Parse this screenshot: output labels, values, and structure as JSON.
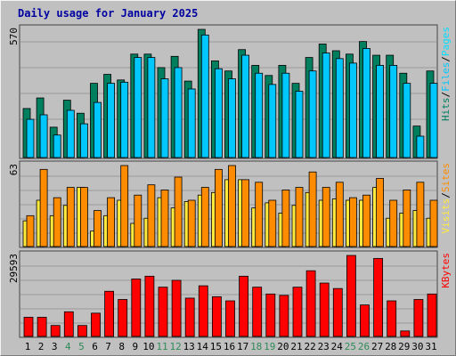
{
  "title": "Daily usage for January 2025",
  "colors": {
    "hits": "#007f5f",
    "files": "#00c8ff",
    "pages": "#00e0ff",
    "sites": "#ffea3d",
    "visits": "#ff8c00",
    "kbytes": "#ff0000",
    "title": "#0000a0",
    "weekend": "#2e8b57"
  },
  "chart_data": [
    {
      "type": "bar",
      "name": "hits-files-pages",
      "max_label": "570",
      "right_label": [
        "Pages",
        "Files",
        "Hits"
      ],
      "categories": [
        "1",
        "2",
        "3",
        "4",
        "5",
        "6",
        "7",
        "8",
        "9",
        "10",
        "11",
        "12",
        "13",
        "14",
        "15",
        "16",
        "17",
        "18",
        "19",
        "20",
        "21",
        "22",
        "23",
        "24",
        "25",
        "26",
        "27",
        "28",
        "29",
        "30",
        "31"
      ],
      "series": [
        {
          "name": "Hits",
          "values": [
            218,
            265,
            135,
            255,
            197,
            330,
            370,
            345,
            460,
            460,
            400,
            450,
            340,
            570,
            430,
            385,
            480,
            410,
            365,
            410,
            330,
            445,
            505,
            475,
            460,
            516,
            455,
            455,
            375,
            140,
            385
          ]
        },
        {
          "name": "Files",
          "values": [
            170,
            190,
            100,
            210,
            150,
            245,
            330,
            335,
            445,
            445,
            350,
            400,
            305,
            545,
            395,
            350,
            455,
            375,
            325,
            375,
            295,
            385,
            465,
            440,
            420,
            485,
            410,
            410,
            330,
            95,
            330
          ]
        }
      ]
    },
    {
      "type": "bar",
      "name": "sites-visits",
      "max_label": "63",
      "right_label": [
        "Sites",
        "Visits"
      ],
      "categories": [
        "1",
        "2",
        "3",
        "4",
        "5",
        "6",
        "7",
        "8",
        "9",
        "10",
        "11",
        "12",
        "13",
        "14",
        "15",
        "16",
        "17",
        "18",
        "19",
        "20",
        "21",
        "22",
        "23",
        "24",
        "25",
        "26",
        "27",
        "28",
        "29",
        "30",
        "31"
      ],
      "series": [
        {
          "name": "Sites",
          "values": [
            20,
            36,
            24,
            32,
            46,
            12,
            24,
            36,
            18,
            22,
            38,
            30,
            35,
            40,
            42,
            52,
            52,
            30,
            34,
            26,
            32,
            42,
            36,
            37,
            36,
            36,
            46,
            22,
            26,
            28,
            22
          ]
        },
        {
          "name": "Visits",
          "values": [
            24,
            60,
            38,
            46,
            46,
            28,
            38,
            63,
            40,
            48,
            44,
            54,
            36,
            46,
            60,
            63,
            52,
            50,
            36,
            44,
            46,
            58,
            46,
            50,
            38,
            40,
            53,
            36,
            44,
            50,
            36
          ]
        }
      ]
    },
    {
      "type": "bar",
      "name": "kbytes",
      "max_label": "29593",
      "right_label": [
        "KBytes"
      ],
      "categories": [
        "1",
        "2",
        "3",
        "4",
        "5",
        "6",
        "7",
        "8",
        "9",
        "10",
        "11",
        "12",
        "13",
        "14",
        "15",
        "16",
        "17",
        "18",
        "19",
        "20",
        "21",
        "22",
        "23",
        "24",
        "25",
        "26",
        "27",
        "28",
        "29",
        "30",
        "31"
      ],
      "series": [
        {
          "name": "KBytes",
          "values": [
            7000,
            7000,
            4000,
            9000,
            4000,
            8500,
            16500,
            13500,
            21000,
            22000,
            18000,
            20500,
            14000,
            18500,
            14500,
            13000,
            22000,
            18000,
            15500,
            15000,
            18000,
            24000,
            19500,
            17500,
            29593,
            11500,
            28500,
            13000,
            2000,
            13500,
            15500
          ]
        }
      ]
    }
  ],
  "weekend_days": [
    "4",
    "5",
    "11",
    "12",
    "18",
    "19",
    "25",
    "26"
  ]
}
